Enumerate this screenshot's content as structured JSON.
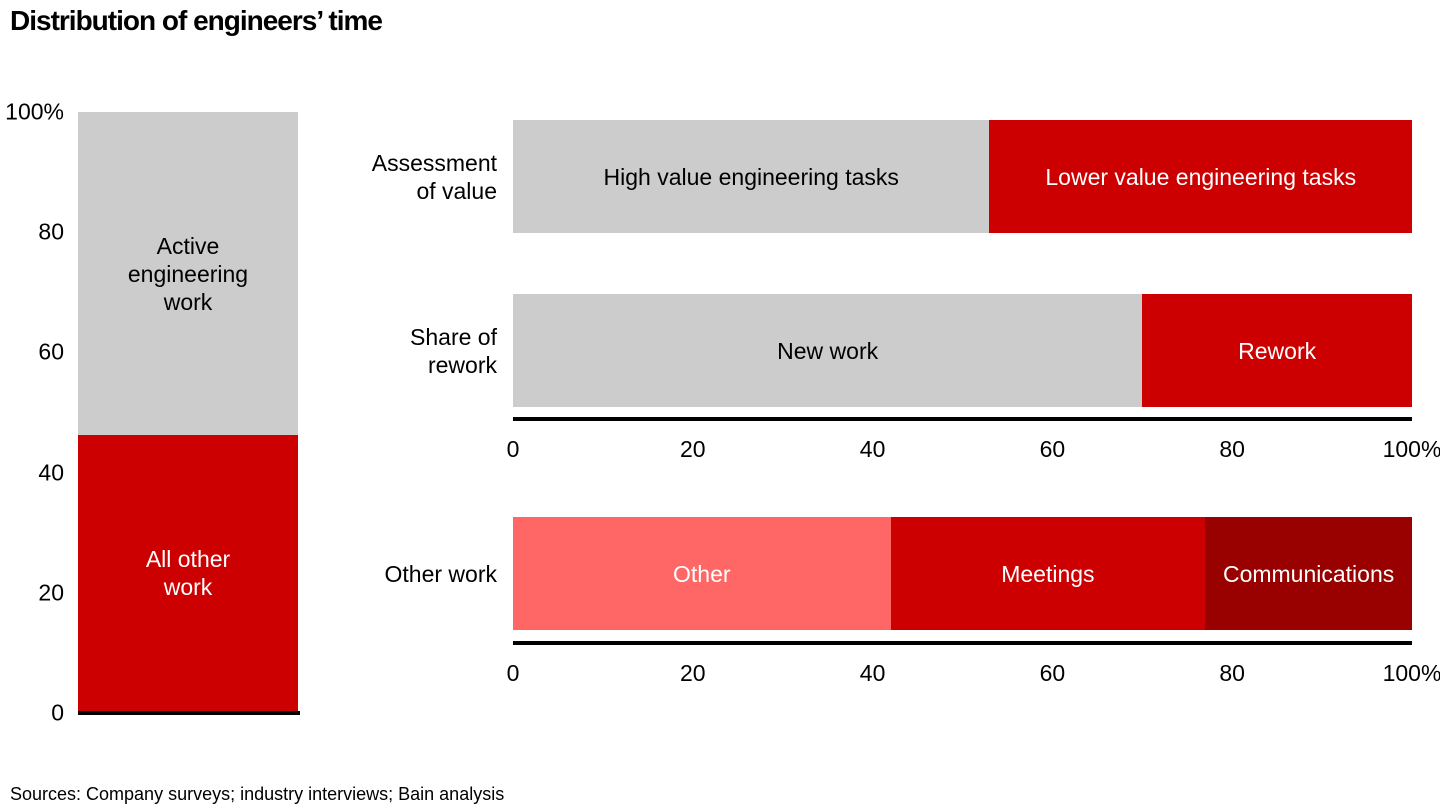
{
  "title": "Distribution of engineers’ time",
  "source_note": "Sources: Company surveys; industry interviews; Bain analysis",
  "colors": {
    "gray": "#cccccc",
    "red": "#cc0000",
    "salmon": "#ff6666",
    "dark_red": "#990000",
    "axis": "#000000",
    "white_text": "#ffffff",
    "black_text": "#000000"
  },
  "chart_data": [
    {
      "type": "bar",
      "orientation": "vertical",
      "stacked": true,
      "ylim": [
        0,
        100
      ],
      "y_ticks": [
        "0",
        "20",
        "40",
        "60",
        "80",
        "100%"
      ],
      "segments": [
        {
          "name": "All other work",
          "label": "All other\nwork",
          "value": 46,
          "color": "#cc0000",
          "text_color": "#ffffff"
        },
        {
          "name": "Active engineering work",
          "label": "Active\nengineering\nwork",
          "value": 54,
          "color": "#cccccc",
          "text_color": "#000000"
        }
      ]
    },
    {
      "type": "bar",
      "orientation": "horizontal",
      "stacked": true,
      "xlim": [
        0,
        100
      ],
      "x_ticks": [
        "0",
        "20",
        "40",
        "60",
        "80",
        "100%"
      ],
      "rows": [
        {
          "label": "Assessment\nof value",
          "segments": [
            {
              "name": "High value engineering tasks",
              "value": 53,
              "color": "#cccccc",
              "text_color": "#000000"
            },
            {
              "name": "Lower value engineering tasks",
              "value": 47,
              "color": "#cc0000",
              "text_color": "#ffffff"
            }
          ]
        },
        {
          "label": "Share of\nrework",
          "segments": [
            {
              "name": "New work",
              "value": 70,
              "color": "#cccccc",
              "text_color": "#000000"
            },
            {
              "name": "Rework",
              "value": 30,
              "color": "#cc0000",
              "text_color": "#ffffff"
            }
          ]
        }
      ]
    },
    {
      "type": "bar",
      "orientation": "horizontal",
      "stacked": true,
      "xlim": [
        0,
        100
      ],
      "x_ticks": [
        "0",
        "20",
        "40",
        "60",
        "80",
        "100%"
      ],
      "rows": [
        {
          "label": "Other work",
          "segments": [
            {
              "name": "Other",
              "value": 42,
              "color": "#ff6666",
              "text_color": "#ffffff"
            },
            {
              "name": "Meetings",
              "value": 35,
              "color": "#cc0000",
              "text_color": "#ffffff"
            },
            {
              "name": "Communications",
              "value": 23,
              "color": "#990000",
              "text_color": "#ffffff"
            }
          ]
        }
      ]
    }
  ]
}
